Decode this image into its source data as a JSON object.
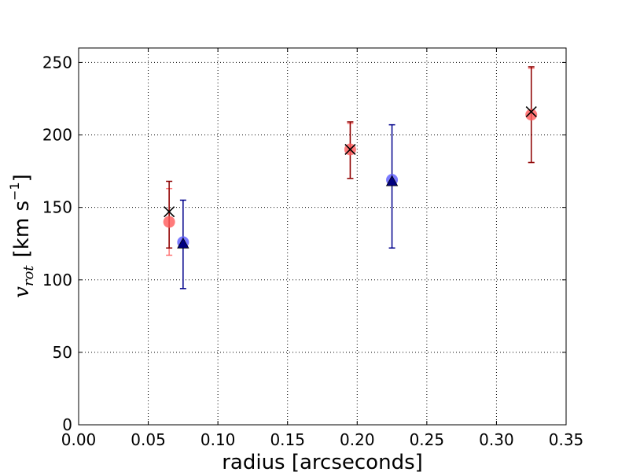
{
  "chart_data": {
    "type": "scatter",
    "title": "",
    "xlabel": "radius [arcseconds]",
    "ylabel": {
      "symbol": "v",
      "subscript": "rot",
      "units_prefix": "[km s",
      "units_exponent": "−1",
      "units_suffix": "]"
    },
    "xlim": [
      0.0,
      0.35
    ],
    "ylim": [
      0,
      260
    ],
    "xticks": [
      0.0,
      0.05,
      0.1,
      0.15,
      0.2,
      0.25,
      0.3,
      0.35
    ],
    "xtick_labels": [
      "0.00",
      "0.05",
      "0.10",
      "0.15",
      "0.20",
      "0.25",
      "0.30",
      "0.35"
    ],
    "yticks": [
      0,
      50,
      100,
      150,
      200,
      250
    ],
    "ytick_labels": [
      "0",
      "50",
      "100",
      "150",
      "200",
      "250"
    ],
    "grid": true,
    "grid_style": "dotted",
    "series": [
      {
        "marker": "circle",
        "color": "#ff5a5a",
        "opacity": 0.8,
        "points": [
          {
            "x": 0.065,
            "y": 140,
            "yerr_low": 117,
            "yerr_high": 163
          },
          {
            "x": 0.195,
            "y": 190,
            "yerr_low": 170,
            "yerr_high": 208
          },
          {
            "x": 0.325,
            "y": 214,
            "yerr_low": 181,
            "yerr_high": 246
          }
        ]
      },
      {
        "marker": "x",
        "color": "#000000",
        "errcolor": "#8b0000",
        "points": [
          {
            "x": 0.065,
            "y": 147,
            "yerr_low": 122,
            "yerr_high": 168
          },
          {
            "x": 0.195,
            "y": 190,
            "yerr_low": 170,
            "yerr_high": 209
          },
          {
            "x": 0.325,
            "y": 216,
            "yerr_low": 181,
            "yerr_high": 247
          }
        ]
      },
      {
        "marker": "circle",
        "color": "#5a5aff",
        "opacity": 0.8,
        "points": [
          {
            "x": 0.075,
            "y": 126
          },
          {
            "x": 0.225,
            "y": 169
          }
        ]
      },
      {
        "marker": "triangle",
        "color": "#000080",
        "errcolor": "#00008b",
        "points": [
          {
            "x": 0.075,
            "y": 125,
            "yerr_low": 94,
            "yerr_high": 155
          },
          {
            "x": 0.225,
            "y": 168,
            "yerr_low": 122,
            "yerr_high": 207
          }
        ]
      }
    ]
  }
}
